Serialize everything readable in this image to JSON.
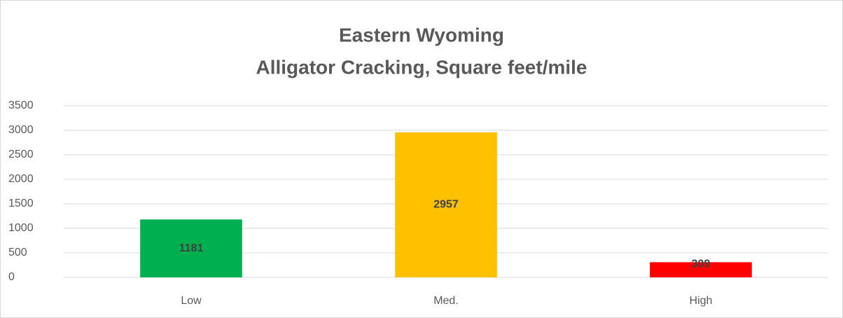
{
  "chart_data": {
    "type": "bar",
    "title": "Eastern Wyoming",
    "subtitle": "Alligator Cracking, Square feet/mile",
    "categories": [
      "Low",
      "Med.",
      "High"
    ],
    "values": [
      1181,
      2957,
      309
    ],
    "colors": [
      "#00b050",
      "#ffc000",
      "#ff0000"
    ],
    "ylim": [
      0,
      3500
    ],
    "yticks": [
      0,
      500,
      1000,
      1500,
      2000,
      2500,
      3000,
      3500
    ],
    "grid": true,
    "data_labels": true
  }
}
